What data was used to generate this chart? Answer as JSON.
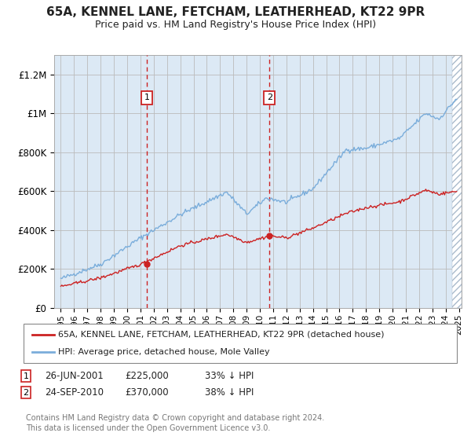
{
  "title": "65A, KENNEL LANE, FETCHAM, LEATHERHEAD, KT22 9PR",
  "subtitle": "Price paid vs. HM Land Registry's House Price Index (HPI)",
  "hpi_label": "HPI: Average price, detached house, Mole Valley",
  "prop_label": "65A, KENNEL LANE, FETCHAM, LEATHERHEAD, KT22 9PR (detached house)",
  "footer": "Contains HM Land Registry data © Crown copyright and database right 2024.\nThis data is licensed under the Open Government Licence v3.0.",
  "sale1_date": "26-JUN-2001",
  "sale1_price": "£225,000",
  "sale1_pct": "33% ↓ HPI",
  "sale2_date": "24-SEP-2010",
  "sale2_price": "£370,000",
  "sale2_pct": "38% ↓ HPI",
  "sale1_x": 2001.49,
  "sale2_x": 2010.73,
  "sale1_y": 225000,
  "sale2_y": 370000,
  "ylim": [
    0,
    1300000
  ],
  "xlim": [
    1994.5,
    2025.2
  ],
  "hpi_color": "#7aaddb",
  "prop_color": "#cc2222",
  "vline_color": "#cc2222",
  "bg_color": "#dce9f5",
  "grid_color": "#bbbbbb",
  "title_fontsize": 11,
  "subtitle_fontsize": 9
}
